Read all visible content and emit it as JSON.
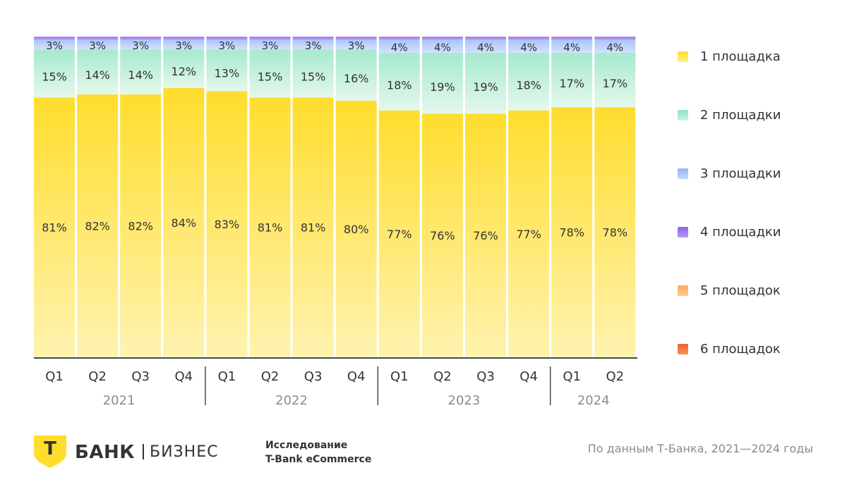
{
  "chart_data": {
    "type": "bar",
    "stacked": true,
    "categories": [
      "Q1",
      "Q2",
      "Q3",
      "Q4",
      "Q1",
      "Q2",
      "Q3",
      "Q4",
      "Q1",
      "Q2",
      "Q3",
      "Q4",
      "Q1",
      "Q2"
    ],
    "groups": [
      {
        "label": "2021",
        "count": 4
      },
      {
        "label": "2022",
        "count": 4
      },
      {
        "label": "2023",
        "count": 4
      },
      {
        "label": "2024",
        "count": 2
      }
    ],
    "series": [
      {
        "name": "1 площадка",
        "color": "#FFDD2D",
        "values": [
          81,
          82,
          82,
          84,
          83,
          81,
          81,
          80,
          77,
          76,
          76,
          77,
          78,
          78
        ]
      },
      {
        "name": "2 площадки",
        "color": "#8EE3C1",
        "values": [
          15,
          14,
          14,
          12,
          13,
          15,
          15,
          16,
          18,
          19,
          19,
          18,
          17,
          17
        ]
      },
      {
        "name": "3 площадки",
        "color": "#A9C6FA",
        "values": [
          3,
          3,
          3,
          3,
          3,
          3,
          3,
          3,
          4,
          4,
          4,
          4,
          4,
          4
        ]
      },
      {
        "name": "4 площадки",
        "color": "#9E7BF0",
        "values": [
          1,
          1,
          1,
          1,
          1,
          1,
          1,
          1,
          1,
          1,
          1,
          1,
          1,
          1
        ]
      },
      {
        "name": "5 площадок",
        "color": "#FFB36B",
        "values": [
          0,
          0,
          0,
          0,
          0,
          0,
          0,
          0,
          0,
          0,
          0,
          0,
          0,
          0
        ]
      },
      {
        "name": "6 площадок",
        "color": "#F26B2E",
        "values": [
          0,
          0,
          0,
          0,
          0,
          0,
          0,
          0,
          0,
          0,
          0,
          0,
          0,
          0
        ]
      }
    ],
    "data_labels": [
      [
        "81%",
        "82%",
        "82%",
        "84%",
        "83%",
        "81%",
        "81%",
        "80%",
        "77%",
        "76%",
        "76%",
        "77%",
        "78%",
        "78%"
      ],
      [
        "15%",
        "14%",
        "14%",
        "12%",
        "13%",
        "15%",
        "15%",
        "16%",
        "18%",
        "19%",
        "19%",
        "18%",
        "17%",
        "17%"
      ],
      [
        "3%",
        "3%",
        "3%",
        "3%",
        "3%",
        "3%",
        "3%",
        "3%",
        "4%",
        "4%",
        "4%",
        "4%",
        "4%",
        "4%"
      ]
    ],
    "ylim": [
      0,
      100
    ],
    "legend_position": "right",
    "grid": false
  },
  "logo": {
    "letter": "Т",
    "bank": "БАНК",
    "business": "БИЗНЕС"
  },
  "study": {
    "line1": "Исследование",
    "line2": "T-Bank eCommerce"
  },
  "source": "По данным Т-Банка, 2021—2024 годы"
}
